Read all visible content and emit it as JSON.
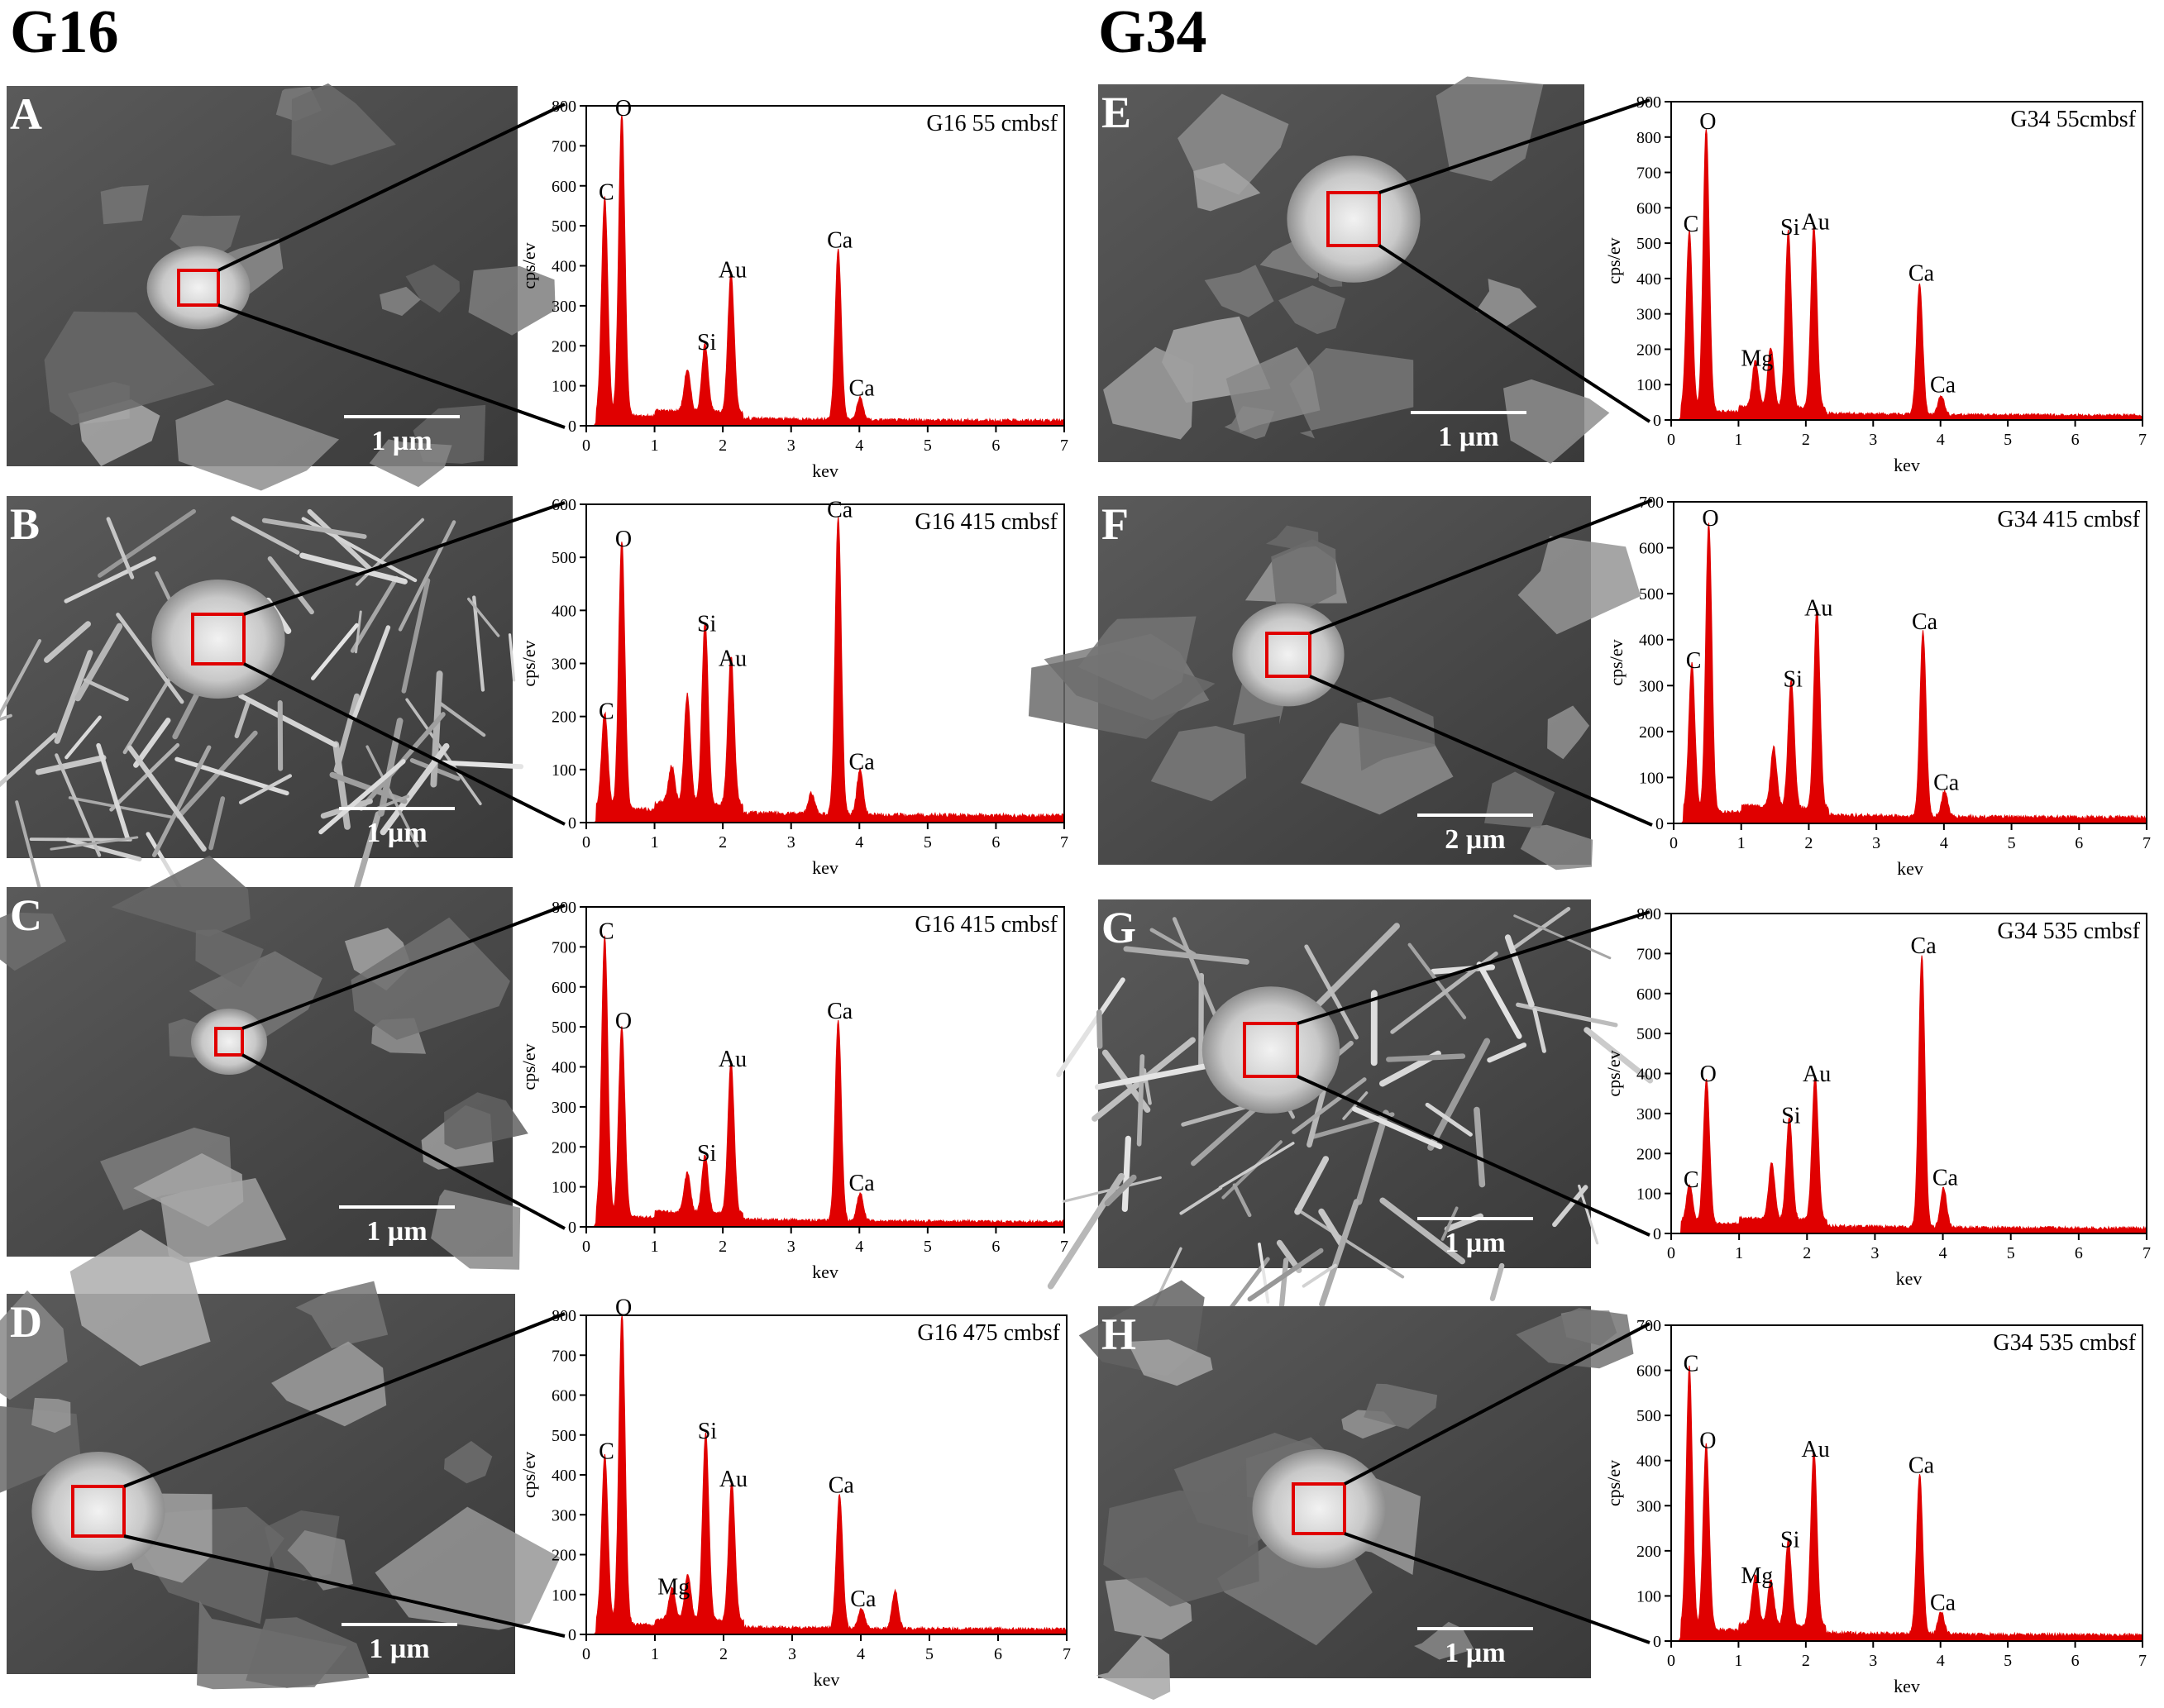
{
  "groups": [
    {
      "title": "G16"
    },
    {
      "title": "G34"
    }
  ],
  "panels": [
    {
      "letter": "A",
      "scale": "1 µm",
      "micrograph": "sem-platy-grains-with-bright-particle"
    },
    {
      "letter": "B",
      "scale": "1 µm",
      "micrograph": "sem-acicular-crystal-cluster"
    },
    {
      "letter": "C",
      "scale": "1 µm",
      "micrograph": "sem-smooth-matrix-with-small-grains"
    },
    {
      "letter": "D",
      "scale": "1 µm",
      "micrograph": "sem-rounded-bright-grain"
    },
    {
      "letter": "E",
      "scale": "1 µm",
      "micrograph": "sem-platy-flakes"
    },
    {
      "letter": "F",
      "scale": "2 µm",
      "micrograph": "sem-bright-aggregate-on-matrix"
    },
    {
      "letter": "G",
      "scale": "1 µm",
      "micrograph": "sem-needle-crystals"
    },
    {
      "letter": "H",
      "scale": "1 µm",
      "micrograph": "sem-bright-flaky-aggregate"
    }
  ],
  "colors": {
    "spectrum": "#e00000",
    "selection_box": "#e00000",
    "frame": "#000000"
  },
  "chart_data": [
    {
      "type": "area",
      "title": "G16 55 cmbsf",
      "xlabel": "kev",
      "ylabel": "cps/ev",
      "xlim": [
        0,
        7
      ],
      "ylim": [
        0,
        800
      ],
      "xticks": [
        0,
        1,
        2,
        3,
        4,
        5,
        6,
        7
      ],
      "yticks": [
        0,
        100,
        200,
        300,
        400,
        500,
        600,
        700,
        800
      ],
      "peaks": [
        {
          "x": 0.27,
          "y": 545,
          "label": "C"
        },
        {
          "x": 0.52,
          "y": 755,
          "label": "O"
        },
        {
          "x": 1.48,
          "y": 105,
          "label": ""
        },
        {
          "x": 1.74,
          "y": 170,
          "label": "Si"
        },
        {
          "x": 2.12,
          "y": 350,
          "label": "Au"
        },
        {
          "x": 3.69,
          "y": 425,
          "label": "Ca"
        },
        {
          "x": 4.01,
          "y": 55,
          "label": "Ca"
        }
      ]
    },
    {
      "type": "area",
      "title": "G16 415 cmbsf",
      "xlabel": "kev",
      "ylabel": "cps/ev",
      "xlim": [
        0,
        7
      ],
      "ylim": [
        0,
        600
      ],
      "xticks": [
        0,
        1,
        2,
        3,
        4,
        5,
        6,
        7
      ],
      "yticks": [
        0,
        100,
        200,
        300,
        400,
        500,
        600
      ],
      "peaks": [
        {
          "x": 0.27,
          "y": 180,
          "label": "C"
        },
        {
          "x": 0.52,
          "y": 505,
          "label": "O"
        },
        {
          "x": 1.25,
          "y": 70,
          "label": ""
        },
        {
          "x": 1.48,
          "y": 205,
          "label": ""
        },
        {
          "x": 1.74,
          "y": 345,
          "label": "Si"
        },
        {
          "x": 2.12,
          "y": 280,
          "label": "Au"
        },
        {
          "x": 3.3,
          "y": 40,
          "label": ""
        },
        {
          "x": 3.69,
          "y": 560,
          "label": "Ca"
        },
        {
          "x": 4.01,
          "y": 85,
          "label": "Ca"
        }
      ]
    },
    {
      "type": "area",
      "title": "G16 415 cmbsf",
      "xlabel": "kev",
      "ylabel": "cps/ev",
      "xlim": [
        0,
        7
      ],
      "ylim": [
        0,
        800
      ],
      "xticks": [
        0,
        1,
        2,
        3,
        4,
        5,
        6,
        7
      ],
      "yticks": [
        0,
        100,
        200,
        300,
        400,
        500,
        600,
        700,
        800
      ],
      "peaks": [
        {
          "x": 0.27,
          "y": 700,
          "label": "C"
        },
        {
          "x": 0.52,
          "y": 475,
          "label": "O"
        },
        {
          "x": 1.48,
          "y": 100,
          "label": ""
        },
        {
          "x": 1.74,
          "y": 145,
          "label": "Si"
        },
        {
          "x": 2.12,
          "y": 380,
          "label": "Au"
        },
        {
          "x": 3.69,
          "y": 500,
          "label": "Ca"
        },
        {
          "x": 4.01,
          "y": 70,
          "label": "Ca"
        }
      ]
    },
    {
      "type": "area",
      "title": "G16 475 cmbsf",
      "xlabel": "kev",
      "ylabel": "cps/ev",
      "xlim": [
        0,
        7
      ],
      "ylim": [
        0,
        800
      ],
      "xticks": [
        0,
        1,
        2,
        3,
        4,
        5,
        6,
        7
      ],
      "yticks": [
        0,
        100,
        200,
        300,
        400,
        500,
        600,
        700,
        800
      ],
      "peaks": [
        {
          "x": 0.27,
          "y": 420,
          "label": "C"
        },
        {
          "x": 0.52,
          "y": 780,
          "label": "O"
        },
        {
          "x": 1.25,
          "y": 80,
          "label": "Mg"
        },
        {
          "x": 1.48,
          "y": 115,
          "label": ""
        },
        {
          "x": 1.74,
          "y": 470,
          "label": "Si"
        },
        {
          "x": 2.12,
          "y": 350,
          "label": "Au"
        },
        {
          "x": 3.69,
          "y": 335,
          "label": "Ca"
        },
        {
          "x": 4.01,
          "y": 50,
          "label": "Ca"
        },
        {
          "x": 4.5,
          "y": 95,
          "label": ""
        }
      ]
    },
    {
      "type": "area",
      "title": "G34 55cmbsf",
      "xlabel": "kev",
      "ylabel": "cps/ev",
      "xlim": [
        0,
        7
      ],
      "ylim": [
        0,
        900
      ],
      "xticks": [
        0,
        1,
        2,
        3,
        4,
        5,
        6,
        7
      ],
      "yticks": [
        0,
        100,
        200,
        300,
        400,
        500,
        600,
        700,
        800,
        900
      ],
      "peaks": [
        {
          "x": 0.27,
          "y": 510,
          "label": "C"
        },
        {
          "x": 0.52,
          "y": 800,
          "label": "O"
        },
        {
          "x": 1.25,
          "y": 130,
          "label": "Mg"
        },
        {
          "x": 1.48,
          "y": 170,
          "label": ""
        },
        {
          "x": 1.74,
          "y": 500,
          "label": "Si"
        },
        {
          "x": 2.12,
          "y": 515,
          "label": "Au"
        },
        {
          "x": 3.69,
          "y": 370,
          "label": "Ca"
        },
        {
          "x": 4.01,
          "y": 55,
          "label": "Ca"
        }
      ]
    },
    {
      "type": "area",
      "title": "G34 415 cmbsf",
      "xlabel": "kev",
      "ylabel": "cps/ev",
      "xlim": [
        0,
        7
      ],
      "ylim": [
        0,
        700
      ],
      "xticks": [
        0,
        1,
        2,
        3,
        4,
        5,
        6,
        7
      ],
      "yticks": [
        0,
        100,
        200,
        300,
        400,
        500,
        600,
        700
      ],
      "peaks": [
        {
          "x": 0.27,
          "y": 320,
          "label": "C"
        },
        {
          "x": 0.52,
          "y": 630,
          "label": "O"
        },
        {
          "x": 1.48,
          "y": 130,
          "label": ""
        },
        {
          "x": 1.74,
          "y": 280,
          "label": "Si"
        },
        {
          "x": 2.12,
          "y": 435,
          "label": "Au"
        },
        {
          "x": 3.69,
          "y": 405,
          "label": "Ca"
        },
        {
          "x": 4.01,
          "y": 55,
          "label": "Ca"
        }
      ]
    },
    {
      "type": "area",
      "title": "G34 535 cmbsf",
      "xlabel": "kev",
      "ylabel": "cps/ev",
      "xlim": [
        0,
        7
      ],
      "ylim": [
        0,
        800
      ],
      "xticks": [
        0,
        1,
        2,
        3,
        4,
        5,
        6,
        7
      ],
      "yticks": [
        0,
        100,
        200,
        300,
        400,
        500,
        600,
        700,
        800
      ],
      "peaks": [
        {
          "x": 0.27,
          "y": 95,
          "label": "C"
        },
        {
          "x": 0.52,
          "y": 360,
          "label": "O"
        },
        {
          "x": 1.48,
          "y": 140,
          "label": ""
        },
        {
          "x": 1.74,
          "y": 255,
          "label": "Si"
        },
        {
          "x": 2.12,
          "y": 360,
          "label": "Au"
        },
        {
          "x": 3.69,
          "y": 680,
          "label": "Ca"
        },
        {
          "x": 4.01,
          "y": 100,
          "label": "Ca"
        }
      ]
    },
    {
      "type": "area",
      "title": "G34 535 cmbsf",
      "xlabel": "kev",
      "ylabel": "cps/ev",
      "xlim": [
        0,
        7
      ],
      "ylim": [
        0,
        700
      ],
      "xticks": [
        0,
        1,
        2,
        3,
        4,
        5,
        6,
        7
      ],
      "yticks": [
        0,
        100,
        200,
        300,
        400,
        500,
        600,
        700
      ],
      "peaks": [
        {
          "x": 0.27,
          "y": 580,
          "label": "C"
        },
        {
          "x": 0.52,
          "y": 410,
          "label": "O"
        },
        {
          "x": 1.25,
          "y": 110,
          "label": "Mg"
        },
        {
          "x": 1.48,
          "y": 100,
          "label": ""
        },
        {
          "x": 1.74,
          "y": 190,
          "label": "Si"
        },
        {
          "x": 2.12,
          "y": 390,
          "label": "Au"
        },
        {
          "x": 3.69,
          "y": 355,
          "label": "Ca"
        },
        {
          "x": 4.01,
          "y": 50,
          "label": "Ca"
        }
      ]
    }
  ]
}
